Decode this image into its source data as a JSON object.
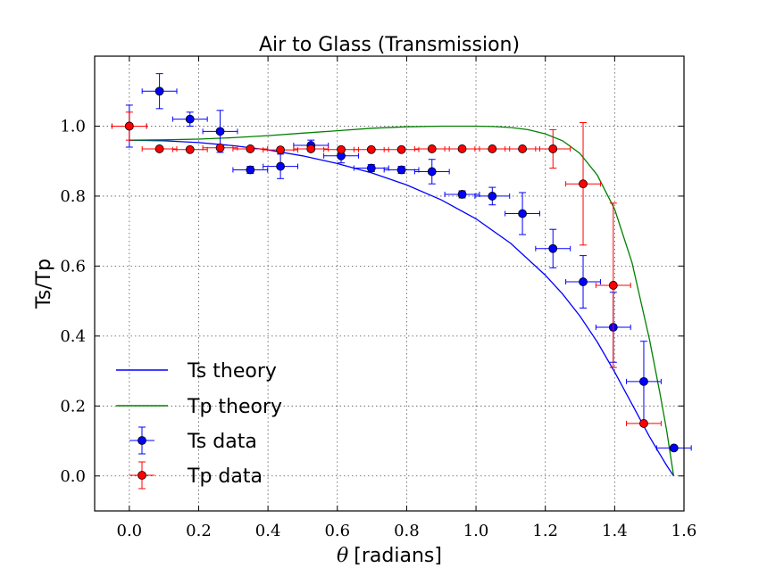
{
  "chart_data": {
    "type": "scatter",
    "title": "Air to Glass (Transmission)",
    "xlabel_symbol": "θ",
    "xlabel_unit": "[radians]",
    "ylabel": "Ts/Tp",
    "xlim": [
      -0.1,
      1.6
    ],
    "ylim": [
      -0.1,
      1.2
    ],
    "xticks": [
      "0.0",
      "0.2",
      "0.4",
      "0.6",
      "0.8",
      "1.0",
      "1.2",
      "1.4",
      "1.6"
    ],
    "yticks": [
      "0.0",
      "0.2",
      "0.4",
      "0.6",
      "0.8",
      "1.0"
    ],
    "grid": true,
    "legend_position": "bottom-left",
    "series": [
      {
        "name": "Ts theory",
        "kind": "line",
        "color": "#0000ff",
        "x": [
          0.0,
          0.1,
          0.2,
          0.3,
          0.4,
          0.5,
          0.6,
          0.7,
          0.8,
          0.9,
          1.0,
          1.1,
          1.2,
          1.25,
          1.3,
          1.35,
          1.4,
          1.45,
          1.5,
          1.53,
          1.55,
          1.57
        ],
        "y": [
          0.96,
          0.958,
          0.953,
          0.944,
          0.932,
          0.915,
          0.893,
          0.866,
          0.832,
          0.789,
          0.735,
          0.665,
          0.574,
          0.52,
          0.457,
          0.383,
          0.297,
          0.205,
          0.113,
          0.063,
          0.03,
          0.0
        ]
      },
      {
        "name": "Tp theory",
        "kind": "line",
        "color": "#008000",
        "x": [
          0.0,
          0.1,
          0.2,
          0.3,
          0.4,
          0.5,
          0.6,
          0.7,
          0.8,
          0.9,
          1.0,
          1.05,
          1.1,
          1.15,
          1.2,
          1.25,
          1.3,
          1.35,
          1.4,
          1.45,
          1.5,
          1.53,
          1.55,
          1.57
        ],
        "y": [
          0.96,
          0.961,
          0.963,
          0.967,
          0.973,
          0.98,
          0.987,
          0.994,
          0.998,
          1.0,
          1.0,
          0.999,
          0.996,
          0.99,
          0.978,
          0.958,
          0.922,
          0.86,
          0.762,
          0.61,
          0.392,
          0.24,
          0.13,
          0.0
        ]
      },
      {
        "name": "Ts data",
        "kind": "errorbar",
        "color": "#0000ff",
        "points": [
          {
            "x": 0.0,
            "y": 1.0,
            "xerr": 0.05,
            "yerr": 0.06
          },
          {
            "x": 0.087,
            "y": 1.1,
            "xerr": 0.05,
            "yerr": 0.05
          },
          {
            "x": 0.175,
            "y": 1.02,
            "xerr": 0.05,
            "yerr": 0.02
          },
          {
            "x": 0.262,
            "y": 0.985,
            "xerr": 0.05,
            "yerr": 0.06
          },
          {
            "x": 0.349,
            "y": 0.875,
            "xerr": 0.05,
            "yerr": 0.01
          },
          {
            "x": 0.436,
            "y": 0.885,
            "xerr": 0.05,
            "yerr": 0.035
          },
          {
            "x": 0.524,
            "y": 0.945,
            "xerr": 0.05,
            "yerr": 0.015
          },
          {
            "x": 0.611,
            "y": 0.915,
            "xerr": 0.05,
            "yerr": 0.02
          },
          {
            "x": 0.698,
            "y": 0.88,
            "xerr": 0.05,
            "yerr": 0.01
          },
          {
            "x": 0.785,
            "y": 0.875,
            "xerr": 0.05,
            "yerr": 0.01
          },
          {
            "x": 0.873,
            "y": 0.87,
            "xerr": 0.05,
            "yerr": 0.035
          },
          {
            "x": 0.96,
            "y": 0.805,
            "xerr": 0.05,
            "yerr": 0.01
          },
          {
            "x": 1.047,
            "y": 0.8,
            "xerr": 0.05,
            "yerr": 0.025
          },
          {
            "x": 1.134,
            "y": 0.75,
            "xerr": 0.05,
            "yerr": 0.06
          },
          {
            "x": 1.222,
            "y": 0.65,
            "xerr": 0.05,
            "yerr": 0.055
          },
          {
            "x": 1.309,
            "y": 0.555,
            "xerr": 0.05,
            "yerr": 0.075
          },
          {
            "x": 1.396,
            "y": 0.425,
            "xerr": 0.05,
            "yerr": 0.1
          },
          {
            "x": 1.484,
            "y": 0.27,
            "xerr": 0.05,
            "yerr": 0.115
          },
          {
            "x": 1.571,
            "y": 0.08,
            "xerr": 0.05,
            "yerr": 0.0
          }
        ]
      },
      {
        "name": "Tp data",
        "kind": "errorbar",
        "color": "#ff0000",
        "points": [
          {
            "x": 0.0,
            "y": 1.0,
            "xerr": 0.05,
            "yerr": 0.04
          },
          {
            "x": 0.087,
            "y": 0.935,
            "xerr": 0.05,
            "yerr": 0.005
          },
          {
            "x": 0.175,
            "y": 0.933,
            "xerr": 0.05,
            "yerr": 0.005
          },
          {
            "x": 0.262,
            "y": 0.938,
            "xerr": 0.05,
            "yerr": 0.005
          },
          {
            "x": 0.349,
            "y": 0.935,
            "xerr": 0.05,
            "yerr": 0.005
          },
          {
            "x": 0.436,
            "y": 0.932,
            "xerr": 0.05,
            "yerr": 0.005
          },
          {
            "x": 0.524,
            "y": 0.935,
            "xerr": 0.05,
            "yerr": 0.005
          },
          {
            "x": 0.611,
            "y": 0.933,
            "xerr": 0.05,
            "yerr": 0.005
          },
          {
            "x": 0.698,
            "y": 0.933,
            "xerr": 0.05,
            "yerr": 0.005
          },
          {
            "x": 0.785,
            "y": 0.933,
            "xerr": 0.05,
            "yerr": 0.005
          },
          {
            "x": 0.873,
            "y": 0.935,
            "xerr": 0.05,
            "yerr": 0.005
          },
          {
            "x": 0.96,
            "y": 0.935,
            "xerr": 0.05,
            "yerr": 0.005
          },
          {
            "x": 1.047,
            "y": 0.935,
            "xerr": 0.05,
            "yerr": 0.005
          },
          {
            "x": 1.134,
            "y": 0.935,
            "xerr": 0.05,
            "yerr": 0.005
          },
          {
            "x": 1.222,
            "y": 0.935,
            "xerr": 0.05,
            "yerr": 0.055
          },
          {
            "x": 1.309,
            "y": 0.835,
            "xerr": 0.05,
            "yerr": 0.175
          },
          {
            "x": 1.396,
            "y": 0.545,
            "xerr": 0.05,
            "yerr": 0.235
          },
          {
            "x": 1.484,
            "y": 0.15,
            "xerr": 0.05,
            "yerr": 0.0
          }
        ]
      }
    ]
  }
}
